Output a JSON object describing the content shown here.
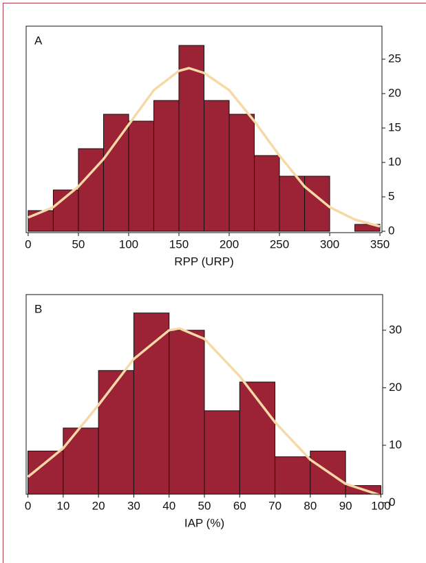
{
  "chart_data": [
    {
      "type": "histogram",
      "panel_label": "A",
      "x_label": "RPP (URP)",
      "bins": [
        0,
        25,
        50,
        75,
        100,
        125,
        150,
        175,
        200,
        225,
        250,
        275,
        300,
        325,
        350
      ],
      "values": [
        3,
        6,
        12,
        17,
        16,
        19,
        27,
        19,
        17,
        11,
        8,
        8,
        0,
        1
      ],
      "color": "#9b2335",
      "curve": {
        "x": [
          0,
          25,
          50,
          75,
          100,
          125,
          150,
          160,
          175,
          200,
          225,
          250,
          275,
          300,
          325,
          350
        ],
        "values": [
          2,
          3.5,
          6.5,
          10.5,
          15.5,
          20.5,
          23.3,
          23.7,
          23,
          20.5,
          16,
          11,
          6.5,
          3.5,
          1.7,
          0.7
        ],
        "color": "#f7d9a8"
      },
      "xlim": [
        -2,
        352
      ],
      "ylim": [
        -0.2,
        29.8
      ],
      "xticks": [
        0,
        50,
        100,
        150,
        200,
        250,
        300,
        350
      ],
      "yticks": [
        0,
        5,
        10,
        15,
        20,
        25
      ]
    },
    {
      "type": "histogram",
      "panel_label": "B",
      "x_label": "IAP (%)",
      "bins": [
        0,
        10,
        20,
        30,
        40,
        50,
        60,
        70,
        80,
        90,
        100
      ],
      "values": [
        9,
        13,
        23,
        33,
        30,
        16,
        21,
        8,
        9,
        3
      ],
      "color": "#9b2335",
      "curve": {
        "x": [
          0,
          10,
          20,
          30,
          40,
          43,
          50,
          60,
          70,
          80,
          90,
          100
        ],
        "values": [
          4.5,
          9.5,
          17,
          25,
          30,
          30.3,
          28.5,
          22,
          14,
          7.5,
          3.3,
          1.3
        ],
        "color": "#f7d9a8"
      },
      "xlim": [
        -0.5,
        100.5
      ],
      "ylim": [
        1.5,
        36.2
      ],
      "xticks": [
        0,
        10,
        20,
        30,
        40,
        50,
        60,
        70,
        80,
        90,
        100
      ],
      "yticks": [
        0,
        10,
        20,
        30
      ]
    }
  ]
}
